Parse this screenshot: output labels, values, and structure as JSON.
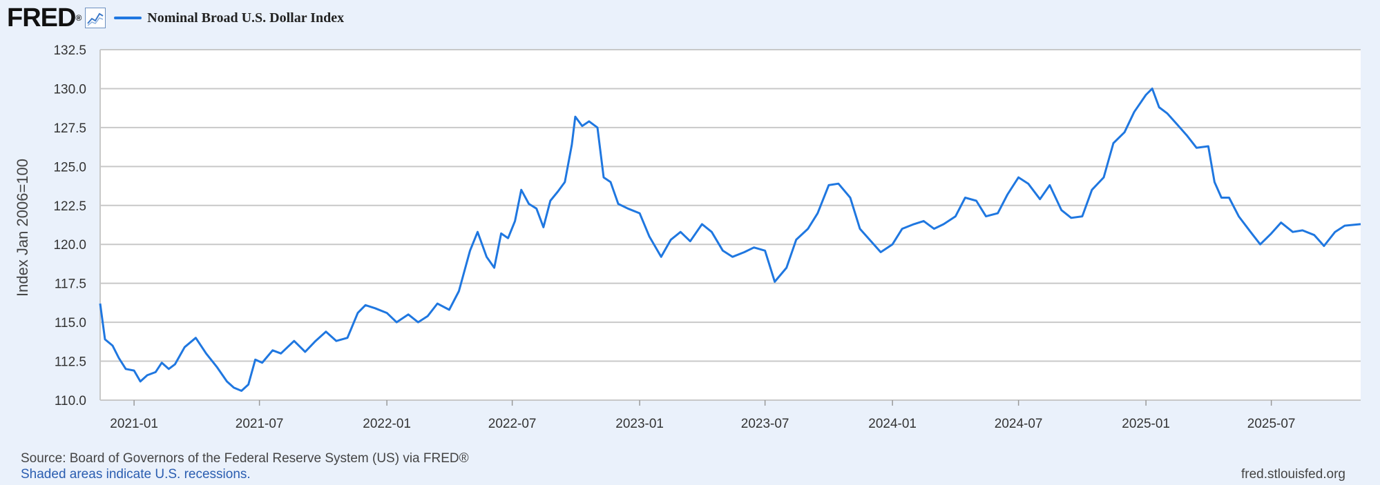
{
  "header": {
    "logo_text": "FRED",
    "logo_mark": "®",
    "icon": "graph-icon",
    "legend_label": "Nominal Broad U.S. Dollar Index"
  },
  "footer": {
    "source": "Source: Board of Governors of the Federal Reserve System (US) via FRED®",
    "shaded_note": "Shaded areas indicate U.S. recessions.",
    "site": "fred.stlouisfed.org"
  },
  "colors": {
    "line": "#1f77e0",
    "background": "#eaf1fb",
    "plot_bg": "#ffffff",
    "grid": "#c8c8c8"
  },
  "chart_data": {
    "type": "line",
    "title": "",
    "xlabel": "",
    "ylabel": "Index Jan 2006=100",
    "ylim": [
      110.0,
      132.5
    ],
    "xlim": [
      "2020-11-13",
      "2025-11-07"
    ],
    "y_ticks": [
      "110.0",
      "112.5",
      "115.0",
      "117.5",
      "120.0",
      "122.5",
      "125.0",
      "127.5",
      "130.0",
      "132.5"
    ],
    "x_ticks": [
      "2021-01",
      "2021-07",
      "2022-01",
      "2022-07",
      "2023-01",
      "2023-07",
      "2024-01",
      "2024-07",
      "2025-01",
      "2025-07"
    ],
    "grid": true,
    "legend_position": "top-left",
    "series": [
      {
        "name": "Nominal Broad U.S. Dollar Index",
        "points": [
          [
            "2020-11-13",
            116.2
          ],
          [
            "2020-11-20",
            113.9
          ],
          [
            "2020-12-01",
            113.5
          ],
          [
            "2020-12-10",
            112.7
          ],
          [
            "2020-12-20",
            112.0
          ],
          [
            "2021-01-01",
            111.9
          ],
          [
            "2021-01-10",
            111.2
          ],
          [
            "2021-01-20",
            111.6
          ],
          [
            "2021-02-01",
            111.8
          ],
          [
            "2021-02-10",
            112.4
          ],
          [
            "2021-02-20",
            112.0
          ],
          [
            "2021-03-01",
            112.3
          ],
          [
            "2021-03-15",
            113.4
          ],
          [
            "2021-03-31",
            114.0
          ],
          [
            "2021-04-15",
            113.0
          ],
          [
            "2021-05-01",
            112.1
          ],
          [
            "2021-05-15",
            111.2
          ],
          [
            "2021-05-25",
            110.8
          ],
          [
            "2021-06-05",
            110.6
          ],
          [
            "2021-06-15",
            111.0
          ],
          [
            "2021-06-25",
            112.6
          ],
          [
            "2021-07-05",
            112.4
          ],
          [
            "2021-07-20",
            113.2
          ],
          [
            "2021-08-01",
            113.0
          ],
          [
            "2021-08-20",
            113.8
          ],
          [
            "2021-09-05",
            113.1
          ],
          [
            "2021-09-20",
            113.8
          ],
          [
            "2021-10-05",
            114.4
          ],
          [
            "2021-10-20",
            113.8
          ],
          [
            "2021-11-05",
            114.0
          ],
          [
            "2021-11-20",
            115.6
          ],
          [
            "2021-12-01",
            116.1
          ],
          [
            "2021-12-15",
            115.9
          ],
          [
            "2022-01-01",
            115.6
          ],
          [
            "2022-01-15",
            115.0
          ],
          [
            "2022-02-01",
            115.5
          ],
          [
            "2022-02-15",
            115.0
          ],
          [
            "2022-03-01",
            115.4
          ],
          [
            "2022-03-15",
            116.2
          ],
          [
            "2022-04-01",
            115.8
          ],
          [
            "2022-04-15",
            117.0
          ],
          [
            "2022-05-01",
            119.6
          ],
          [
            "2022-05-12",
            120.8
          ],
          [
            "2022-05-25",
            119.2
          ],
          [
            "2022-06-05",
            118.5
          ],
          [
            "2022-06-15",
            120.7
          ],
          [
            "2022-06-25",
            120.4
          ],
          [
            "2022-07-05",
            121.5
          ],
          [
            "2022-07-14",
            123.5
          ],
          [
            "2022-07-25",
            122.6
          ],
          [
            "2022-08-05",
            122.3
          ],
          [
            "2022-08-15",
            121.1
          ],
          [
            "2022-08-25",
            122.8
          ],
          [
            "2022-09-05",
            123.4
          ],
          [
            "2022-09-15",
            124.0
          ],
          [
            "2022-09-25",
            126.4
          ],
          [
            "2022-09-30",
            128.2
          ],
          [
            "2022-10-10",
            127.6
          ],
          [
            "2022-10-20",
            127.9
          ],
          [
            "2022-11-01",
            127.5
          ],
          [
            "2022-11-10",
            124.3
          ],
          [
            "2022-11-20",
            124.0
          ],
          [
            "2022-12-01",
            122.6
          ],
          [
            "2022-12-15",
            122.3
          ],
          [
            "2023-01-01",
            122.0
          ],
          [
            "2023-01-15",
            120.5
          ],
          [
            "2023-02-01",
            119.2
          ],
          [
            "2023-02-15",
            120.3
          ],
          [
            "2023-03-01",
            120.8
          ],
          [
            "2023-03-15",
            120.2
          ],
          [
            "2023-04-01",
            121.3
          ],
          [
            "2023-04-15",
            120.8
          ],
          [
            "2023-05-01",
            119.6
          ],
          [
            "2023-05-15",
            119.2
          ],
          [
            "2023-06-01",
            119.5
          ],
          [
            "2023-06-15",
            119.8
          ],
          [
            "2023-07-01",
            119.6
          ],
          [
            "2023-07-15",
            117.6
          ],
          [
            "2023-08-01",
            118.5
          ],
          [
            "2023-08-15",
            120.3
          ],
          [
            "2023-09-01",
            121.0
          ],
          [
            "2023-09-15",
            122.0
          ],
          [
            "2023-10-01",
            123.8
          ],
          [
            "2023-10-15",
            123.9
          ],
          [
            "2023-11-01",
            123.0
          ],
          [
            "2023-11-15",
            121.0
          ],
          [
            "2023-12-01",
            120.2
          ],
          [
            "2023-12-15",
            119.5
          ],
          [
            "2024-01-01",
            120.0
          ],
          [
            "2024-01-15",
            121.0
          ],
          [
            "2024-02-01",
            121.3
          ],
          [
            "2024-02-15",
            121.5
          ],
          [
            "2024-03-01",
            121.0
          ],
          [
            "2024-03-15",
            121.3
          ],
          [
            "2024-04-01",
            121.8
          ],
          [
            "2024-04-15",
            123.0
          ],
          [
            "2024-05-01",
            122.8
          ],
          [
            "2024-05-15",
            121.8
          ],
          [
            "2024-06-01",
            122.0
          ],
          [
            "2024-06-15",
            123.2
          ],
          [
            "2024-07-01",
            124.3
          ],
          [
            "2024-07-15",
            123.9
          ],
          [
            "2024-08-01",
            122.9
          ],
          [
            "2024-08-15",
            123.8
          ],
          [
            "2024-09-01",
            122.2
          ],
          [
            "2024-09-15",
            121.7
          ],
          [
            "2024-10-01",
            121.8
          ],
          [
            "2024-10-15",
            123.5
          ],
          [
            "2024-11-01",
            124.3
          ],
          [
            "2024-11-15",
            126.5
          ],
          [
            "2024-12-01",
            127.2
          ],
          [
            "2024-12-15",
            128.5
          ],
          [
            "2025-01-01",
            129.6
          ],
          [
            "2025-01-10",
            130.0
          ],
          [
            "2025-01-20",
            128.8
          ],
          [
            "2025-02-01",
            128.4
          ],
          [
            "2025-02-15",
            127.7
          ],
          [
            "2025-03-01",
            127.0
          ],
          [
            "2025-03-15",
            126.2
          ],
          [
            "2025-04-01",
            126.3
          ],
          [
            "2025-04-10",
            124.0
          ],
          [
            "2025-04-20",
            123.0
          ],
          [
            "2025-05-01",
            123.0
          ],
          [
            "2025-05-15",
            121.8
          ],
          [
            "2025-06-01",
            120.8
          ],
          [
            "2025-06-15",
            120.0
          ],
          [
            "2025-07-01",
            120.7
          ],
          [
            "2025-07-15",
            121.4
          ],
          [
            "2025-08-01",
            120.8
          ],
          [
            "2025-08-15",
            120.9
          ],
          [
            "2025-09-01",
            120.6
          ],
          [
            "2025-09-15",
            119.9
          ],
          [
            "2025-10-01",
            120.8
          ],
          [
            "2025-10-15",
            121.2
          ],
          [
            "2025-11-07",
            121.3
          ]
        ]
      }
    ]
  }
}
